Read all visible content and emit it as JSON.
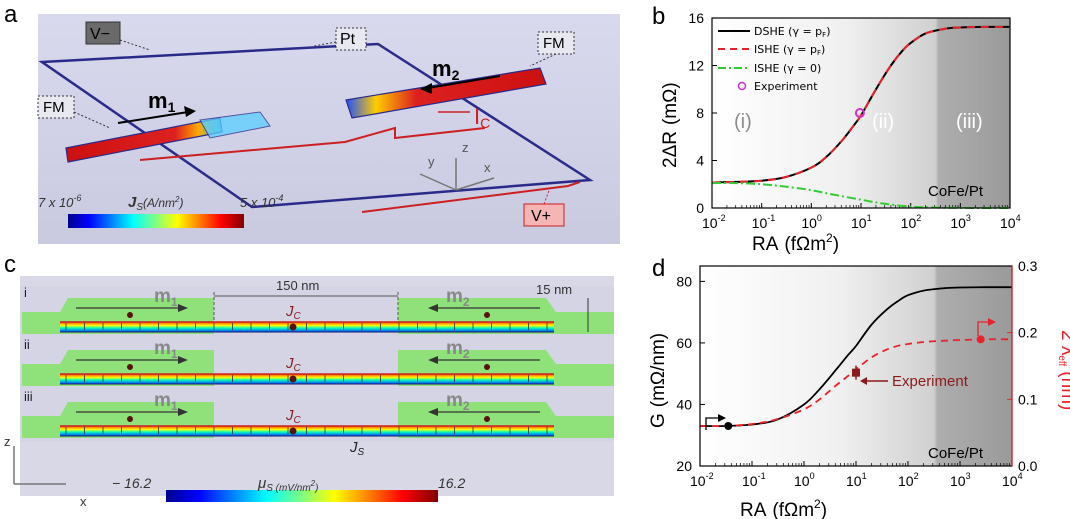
{
  "panels": {
    "a": {
      "label": "a",
      "terminals": {
        "v_minus": "V−",
        "v_plus": "V+",
        "pt": "Pt"
      },
      "fm_left": "FM",
      "fm_right": "FM",
      "m1": "m",
      "m1_sub": "1",
      "m2": "m",
      "m2_sub": "2",
      "ic": "I",
      "ic_sub": "C",
      "axes": {
        "x": "x",
        "y": "y",
        "z": "z"
      },
      "colorbar": {
        "min": "7 x 10",
        "min_exp": "-6",
        "label": "J",
        "label_sub": "S",
        "unit": "(A/nm",
        "unit_exp": "2",
        "unit_end": ")",
        "max": "5 x 10",
        "max_exp": "-4"
      }
    },
    "b": {
      "label": "b",
      "regions": [
        "(i)",
        "(ii)",
        "(iii)"
      ],
      "material": "CoFe/Pt",
      "legend": [
        "DSHE (γ = p",
        "ISHE (γ = p",
        "ISHE (γ = 0)",
        "Experiment"
      ],
      "legend_sub": "F",
      "legend_close": ")",
      "xlabel": "RA",
      "xunit": "(fΩm",
      "xunit_exp": "2",
      "xunit_end": ")",
      "ylabel": "2ΔR",
      "yunit": "(mΩ)"
    },
    "c": {
      "label": "c",
      "rows": [
        "i",
        "ii",
        "iii"
      ],
      "gap": "150 nm",
      "thickness": "15 nm",
      "m1": "m",
      "m1_sub": "1",
      "m2": "m",
      "m2_sub": "2",
      "jc": "J",
      "jc_sub": "C",
      "js": "J",
      "js_sub": "S",
      "axes": {
        "z": "z",
        "x": "x"
      },
      "colorbar": {
        "min": "− 16.2",
        "label": "μ",
        "label_sub": "S (mV/nm",
        "label_exp": "2",
        "label_end": ")",
        "max": "16.2"
      }
    },
    "d": {
      "label": "d",
      "material": "CoFe/Pt",
      "annotation": "Experiment",
      "xlabel": "RA",
      "xunit": "(fΩm",
      "xunit_exp": "2",
      "xunit_end": ")",
      "ylabel": "G",
      "yunit": "(mΩ/nm)",
      "y2label": "2 λ",
      "y2label_sub": "eff",
      "y2unit": "(nm)"
    }
  },
  "colors": {
    "black_curve": "#000000",
    "red_curve": "#e8222a",
    "green_curve": "#33cc33",
    "experiment_b": "#cc33cc",
    "experiment_d": "#8b1a1a"
  },
  "chart_data": [
    {
      "type": "line",
      "panel": "b",
      "xscale": "log",
      "xlim": [
        0.01,
        10000
      ],
      "ylim": [
        0,
        16
      ],
      "xticks": [
        "10",
        "10",
        "10",
        "10",
        "10",
        "10",
        "10"
      ],
      "xtick_exps": [
        "-2",
        "-1",
        "0",
        "1",
        "2",
        "3",
        "4"
      ],
      "yticks": [
        "0",
        "4",
        "8",
        "12",
        "16"
      ],
      "xtick_values": [
        0.01,
        0.1,
        1,
        10,
        100,
        1000,
        10000
      ],
      "ytick_values": [
        0,
        4,
        8,
        12,
        16
      ],
      "series": [
        {
          "name": "DSHE (γ = pF)",
          "x": [
            0.01,
            0.03,
            0.1,
            0.3,
            1,
            2,
            4,
            7,
            10,
            20,
            40,
            70,
            100,
            200,
            500,
            1000,
            3000,
            10000
          ],
          "y": [
            2.15,
            2.2,
            2.3,
            2.6,
            3.4,
            4.3,
            5.6,
            6.9,
            7.8,
            10.0,
            12.0,
            13.3,
            13.9,
            14.7,
            15.1,
            15.2,
            15.25,
            15.25
          ]
        },
        {
          "name": "ISHE (γ = pF)",
          "x": [
            0.01,
            0.03,
            0.1,
            0.3,
            1,
            2,
            4,
            7,
            10,
            20,
            40,
            70,
            100,
            200,
            500,
            1000,
            3000,
            10000
          ],
          "y": [
            2.15,
            2.2,
            2.3,
            2.6,
            3.4,
            4.3,
            5.6,
            6.9,
            7.8,
            10.0,
            12.0,
            13.3,
            13.9,
            14.7,
            15.1,
            15.2,
            15.25,
            15.25
          ]
        },
        {
          "name": "ISHE (γ = 0)",
          "x": [
            0.01,
            0.03,
            0.1,
            0.3,
            1,
            3,
            10,
            30,
            100,
            300,
            1000,
            10000
          ],
          "y": [
            2.1,
            2.1,
            2.0,
            1.8,
            1.5,
            1.1,
            0.7,
            0.35,
            0.12,
            0.04,
            0.01,
            0.0
          ]
        },
        {
          "name": "Experiment",
          "x": [
            9.5
          ],
          "y": [
            8.0
          ]
        }
      ]
    },
    {
      "type": "line",
      "panel": "d",
      "xscale": "log",
      "xlim": [
        0.01,
        10000
      ],
      "ylim": [
        20,
        85
      ],
      "y2lim": [
        0.0,
        0.3
      ],
      "xticks": [
        "10",
        "10",
        "10",
        "10",
        "10",
        "10",
        "10"
      ],
      "xtick_exps": [
        "-2",
        "-1",
        "0",
        "1",
        "2",
        "3",
        "4"
      ],
      "yticks": [
        "20",
        "40",
        "60",
        "80"
      ],
      "y2ticks": [
        "0.0",
        "0.1",
        "0.2",
        "0.3"
      ],
      "xtick_values": [
        0.01,
        0.1,
        1,
        10,
        100,
        1000,
        10000
      ],
      "ytick_values": [
        20,
        40,
        60,
        80
      ],
      "y2tick_values": [
        0,
        0.1,
        0.2,
        0.3
      ],
      "series": [
        {
          "name": "G",
          "axis": "left",
          "x": [
            0.01,
            0.03,
            0.1,
            0.3,
            1,
            2,
            4,
            7,
            10,
            20,
            40,
            70,
            100,
            200,
            500,
            1000,
            3000,
            10000
          ],
          "y": [
            33,
            33,
            33.5,
            35,
            40,
            45,
            51,
            56,
            59,
            66,
            71,
            74,
            75.5,
            77,
            77.8,
            78,
            78.1,
            78.1
          ]
        },
        {
          "name": "2λeff",
          "axis": "right",
          "x": [
            0.01,
            0.03,
            0.1,
            0.3,
            1,
            2,
            4,
            7,
            10,
            20,
            40,
            70,
            100,
            200,
            500,
            1000,
            3000,
            10000
          ],
          "y": [
            0.06,
            0.06,
            0.063,
            0.07,
            0.085,
            0.1,
            0.12,
            0.135,
            0.145,
            0.163,
            0.175,
            0.181,
            0.183,
            0.186,
            0.188,
            0.189,
            0.19,
            0.19
          ]
        },
        {
          "name": "G marker",
          "axis": "left",
          "x": [
            0.035
          ],
          "y": [
            33
          ]
        },
        {
          "name": "2λeff marker",
          "axis": "right",
          "x": [
            2500
          ],
          "y": [
            0.19
          ]
        },
        {
          "name": "Experiment",
          "axis": "right",
          "x": [
            10
          ],
          "y": [
            0.14
          ]
        }
      ]
    }
  ]
}
